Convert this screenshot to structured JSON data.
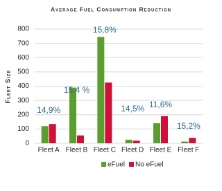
{
  "chart_data": {
    "type": "bar",
    "title": "Average Fuel Consumption Reduction",
    "y_label": "Fleet Size",
    "categories": [
      "Fleet A",
      "Fleet B",
      "Fleet C",
      "Fleet D",
      "Fleet E",
      "Fleet F"
    ],
    "series": [
      {
        "name": "eFuel",
        "color": "#5a9e2f",
        "values": [
          120,
          390,
          745,
          25,
          140,
          12
        ]
      },
      {
        "name": "No eFuel",
        "color": "#d0103a",
        "values": [
          135,
          55,
          425,
          18,
          190,
          38
        ]
      }
    ],
    "annotations": [
      "14,9%",
      "15,4 %",
      "15,8%",
      "14,5%",
      "11,6%",
      "15,2%"
    ],
    "ylim": [
      0,
      800
    ],
    "yticks": [
      0,
      100,
      200,
      300,
      400,
      500,
      600,
      700,
      800
    ],
    "grid": true
  }
}
